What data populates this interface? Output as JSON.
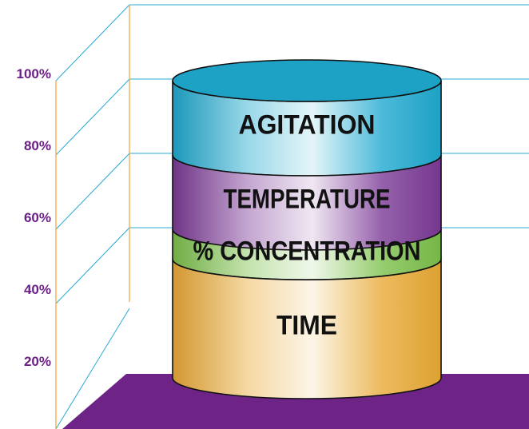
{
  "chart_data": {
    "type": "bar",
    "style": "stacked-cylinder-3d",
    "ylim": [
      0,
      100
    ],
    "y_ticks": [
      "20%",
      "40%",
      "60%",
      "80%",
      "100%"
    ],
    "grid": true,
    "series": [
      {
        "name": "TIME",
        "start": 0,
        "end": 40,
        "color": "#e9a935"
      },
      {
        "name": "% CONCENTRATION",
        "start": 40,
        "end": 50,
        "color": "#7cc04b"
      },
      {
        "name": "TEMPERATURE",
        "start": 50,
        "end": 75,
        "color": "#7b3a96"
      },
      {
        "name": "AGITATION",
        "start": 75,
        "end": 100,
        "color": "#1fa9cf"
      }
    ],
    "colors": {
      "axis": "#f0a23a",
      "grid": "#2aa9d6",
      "floor": "#6e2487",
      "tick_text": "#6b2086"
    }
  }
}
